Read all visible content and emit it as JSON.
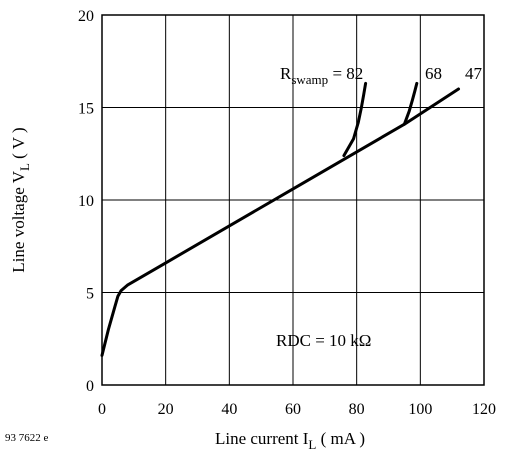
{
  "chart_data": {
    "type": "line",
    "figure_id": "93 7622 e",
    "xlabel": {
      "main": "Line current I",
      "sub": "L",
      "unit": " ( mA )"
    },
    "ylabel": {
      "main": "Line voltage V",
      "sub": "L",
      "unit": " ( V )"
    },
    "xlim": [
      0,
      120
    ],
    "ylim": [
      0,
      20
    ],
    "xticks": [
      0,
      20,
      40,
      60,
      80,
      100,
      120
    ],
    "yticks": [
      0,
      5,
      10,
      15,
      20
    ],
    "grid": true,
    "series": [
      {
        "name": "47",
        "x": [
          0,
          2,
          4,
          5,
          6,
          8,
          20,
          40,
          60,
          80,
          95,
          112
        ],
        "y": [
          1.6,
          3.0,
          4.2,
          4.8,
          5.1,
          5.4,
          6.6,
          8.6,
          10.6,
          12.6,
          14.1,
          16.0
        ]
      },
      {
        "name": "82",
        "x": [
          76,
          79,
          80.5,
          81.5,
          82.2,
          82.8
        ],
        "y": [
          12.4,
          13.3,
          14.2,
          15.0,
          15.7,
          16.3
        ]
      },
      {
        "name": "68",
        "x": [
          95,
          96.5,
          97.5,
          98.3,
          98.9
        ],
        "y": [
          14.1,
          14.8,
          15.4,
          15.9,
          16.3
        ]
      }
    ],
    "annotations": {
      "rswamp_prefix": "R",
      "rswamp_sub": "swamp",
      "rswamp_eq": " = 82",
      "label_68": "68",
      "label_47": "47",
      "rdc": "RDC = 10 kΩ"
    }
  }
}
